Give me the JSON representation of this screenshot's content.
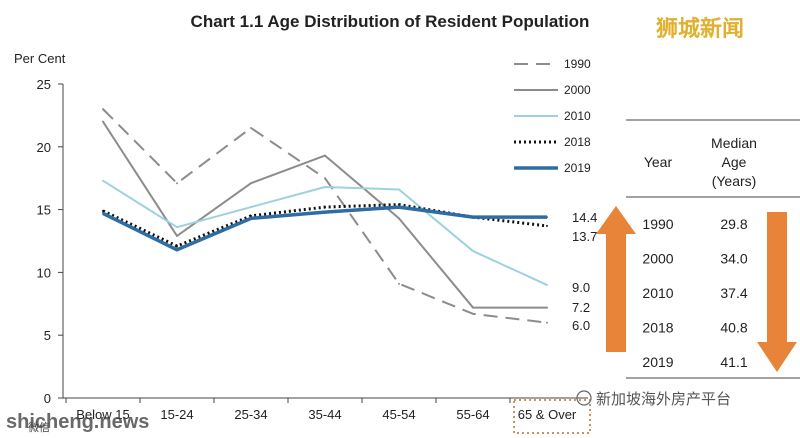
{
  "chart_data": {
    "type": "line",
    "title": "Chart 1.1  Age Distribution of Resident Population",
    "ylabel": "Per Cent",
    "xlabel": "",
    "ylim": [
      0,
      25
    ],
    "yticks": [
      0,
      5,
      10,
      15,
      20,
      25
    ],
    "categories": [
      "Below 15",
      "15-24",
      "25-34",
      "35-44",
      "45-54",
      "55-64",
      "65 & Over"
    ],
    "series": [
      {
        "name": "1990",
        "color": "#8c8c8c",
        "style": "dashed",
        "values": [
          23.0,
          17.1,
          21.5,
          17.5,
          9.1,
          6.7,
          6.0
        ]
      },
      {
        "name": "2000",
        "color": "#8c8c8c",
        "style": "solid",
        "values": [
          22.0,
          12.9,
          17.1,
          19.3,
          14.3,
          7.2,
          7.2
        ]
      },
      {
        "name": "2010",
        "color": "#9fd0e0",
        "style": "solid",
        "values": [
          17.3,
          13.6,
          15.2,
          16.8,
          16.6,
          11.7,
          9.0
        ]
      },
      {
        "name": "2018",
        "color": "#111111",
        "style": "dotted",
        "values": [
          14.9,
          12.1,
          14.5,
          15.2,
          15.4,
          14.4,
          13.7
        ]
      },
      {
        "name": "2019",
        "color": "#2e6da4",
        "style": "solid-thick",
        "values": [
          14.7,
          11.8,
          14.3,
          14.8,
          15.2,
          14.4,
          14.4
        ]
      }
    ],
    "end_labels": [
      "14.4",
      "13.7",
      "9.0",
      "7.2",
      "6.0"
    ],
    "legend_placement": "top-right",
    "grid": false
  },
  "median_table": {
    "headers": {
      "year": "Year",
      "median_line1": "Median",
      "median_line2": "Age",
      "median_line3": "(Years)"
    },
    "rows": [
      {
        "year": "1990",
        "value": "29.8"
      },
      {
        "year": "2000",
        "value": "34.0"
      },
      {
        "year": "2010",
        "value": "37.4"
      },
      {
        "year": "2018",
        "value": "40.8"
      },
      {
        "year": "2019",
        "value": "41.1"
      }
    ],
    "arrow_color": "#e8843a"
  },
  "watermarks": {
    "top_right": "狮城新闻",
    "bottom_right": "新加坡海外房产平台",
    "bottom_left": "shicheng.news",
    "bottom_left_prefix": "微信"
  }
}
